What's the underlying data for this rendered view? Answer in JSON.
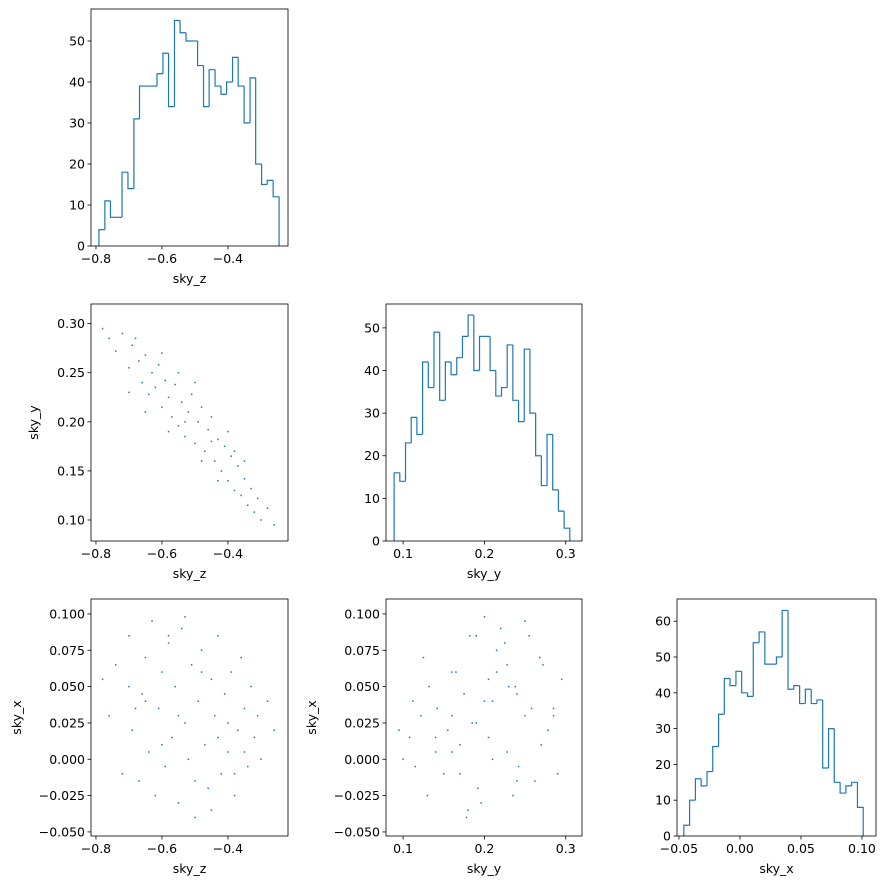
{
  "chart_data": [
    {
      "type": "histogram",
      "x_label": "sky_z",
      "color": "#1f77b4",
      "bins": [
        -0.791,
        -0.773,
        -0.756,
        -0.738,
        -0.721,
        -0.703,
        -0.685,
        -0.668,
        -0.65,
        -0.633,
        -0.615,
        -0.597,
        -0.58,
        -0.562,
        -0.545,
        -0.527,
        -0.509,
        -0.492,
        -0.474,
        -0.457,
        -0.439,
        -0.421,
        -0.404,
        -0.386,
        -0.369,
        -0.351,
        -0.333,
        -0.316,
        -0.298,
        -0.281,
        -0.263,
        -0.245
      ],
      "values": [
        4,
        11,
        7,
        7,
        18,
        14,
        31,
        39,
        39,
        39,
        42,
        47,
        34,
        55,
        52,
        50,
        50,
        44,
        34,
        43,
        39,
        37,
        40,
        46,
        39,
        30,
        41,
        20,
        15,
        16,
        12
      ],
      "xlim": [
        -0.815,
        -0.218
      ],
      "ylim": [
        0,
        57.8
      ],
      "xticks": [
        {
          "value": -0.8,
          "label": "−0.8"
        },
        {
          "value": -0.6,
          "label": "−0.6"
        },
        {
          "value": -0.4,
          "label": "−0.4"
        }
      ],
      "yticks": [
        0,
        10,
        20,
        30,
        40,
        50
      ]
    },
    {
      "type": "scatter",
      "x_label": "sky_z",
      "y_label": "sky_y",
      "color": "#1f77b4",
      "x": [
        -0.78,
        -0.76,
        -0.74,
        -0.72,
        -0.7,
        -0.69,
        -0.67,
        -0.66,
        -0.65,
        -0.64,
        -0.63,
        -0.62,
        -0.61,
        -0.6,
        -0.59,
        -0.58,
        -0.57,
        -0.56,
        -0.55,
        -0.54,
        -0.53,
        -0.52,
        -0.51,
        -0.5,
        -0.49,
        -0.48,
        -0.47,
        -0.46,
        -0.45,
        -0.44,
        -0.43,
        -0.42,
        -0.41,
        -0.4,
        -0.39,
        -0.38,
        -0.37,
        -0.36,
        -0.35,
        -0.34,
        -0.33,
        -0.32,
        -0.31,
        -0.3,
        -0.28,
        -0.26,
        -0.6,
        -0.55,
        -0.5,
        -0.45,
        -0.4,
        -0.35,
        -0.65,
        -0.7,
        -0.48,
        -0.58,
        -0.53,
        -0.43,
        -0.68,
        -0.38
      ],
      "values": [
        0.295,
        0.285,
        0.272,
        0.29,
        0.255,
        0.278,
        0.262,
        0.24,
        0.268,
        0.228,
        0.25,
        0.235,
        0.258,
        0.215,
        0.242,
        0.225,
        0.205,
        0.238,
        0.196,
        0.22,
        0.185,
        0.21,
        0.228,
        0.178,
        0.2,
        0.215,
        0.17,
        0.192,
        0.205,
        0.16,
        0.182,
        0.15,
        0.175,
        0.14,
        0.165,
        0.13,
        0.155,
        0.125,
        0.142,
        0.115,
        0.132,
        0.108,
        0.122,
        0.1,
        0.112,
        0.095,
        0.27,
        0.25,
        0.24,
        0.18,
        0.19,
        0.16,
        0.21,
        0.23,
        0.16,
        0.19,
        0.2,
        0.14,
        0.285,
        0.17
      ],
      "xlim": [
        -0.815,
        -0.218
      ],
      "ylim": [
        0.0786,
        0.32
      ],
      "xticks": [
        {
          "value": -0.8,
          "label": "−0.8"
        },
        {
          "value": -0.6,
          "label": "−0.6"
        },
        {
          "value": -0.4,
          "label": "−0.4"
        }
      ],
      "yticks": [
        {
          "value": 0.1,
          "label": "0.10"
        },
        0.15,
        {
          "value": 0.2,
          "label": "0.20"
        },
        0.25,
        {
          "value": 0.3,
          "label": "0.30"
        }
      ]
    },
    {
      "type": "histogram",
      "x_label": "sky_y",
      "color": "#1f77b4",
      "bins": [
        0.089,
        0.096,
        0.103,
        0.11,
        0.117,
        0.124,
        0.131,
        0.138,
        0.145,
        0.152,
        0.159,
        0.166,
        0.173,
        0.18,
        0.187,
        0.194,
        0.2,
        0.207,
        0.214,
        0.221,
        0.228,
        0.235,
        0.242,
        0.249,
        0.256,
        0.263,
        0.27,
        0.277,
        0.284,
        0.291,
        0.298,
        0.305
      ],
      "values": [
        16,
        14,
        23,
        29,
        25,
        42,
        36,
        49,
        33,
        42,
        39,
        43,
        48,
        53,
        40,
        48,
        48,
        40,
        34,
        36,
        46,
        33,
        28,
        45,
        30,
        20,
        13,
        25,
        12,
        7,
        3
      ],
      "xlim": [
        0.079,
        0.32
      ],
      "ylim": [
        0,
        55.6
      ],
      "xticks": [
        0.1,
        0.2,
        0.3
      ],
      "yticks": [
        0,
        10,
        20,
        30,
        40,
        50
      ]
    },
    {
      "type": "scatter",
      "x_label": "sky_z",
      "y_label": "sky_x",
      "color": "#1f77b4",
      "x": [
        -0.78,
        -0.76,
        -0.74,
        -0.72,
        -0.7,
        -0.69,
        -0.67,
        -0.66,
        -0.65,
        -0.64,
        -0.63,
        -0.62,
        -0.61,
        -0.6,
        -0.59,
        -0.58,
        -0.57,
        -0.56,
        -0.55,
        -0.54,
        -0.53,
        -0.52,
        -0.51,
        -0.5,
        -0.49,
        -0.48,
        -0.47,
        -0.46,
        -0.45,
        -0.44,
        -0.43,
        -0.42,
        -0.41,
        -0.4,
        -0.39,
        -0.38,
        -0.37,
        -0.36,
        -0.35,
        -0.34,
        -0.33,
        -0.32,
        -0.31,
        -0.3,
        -0.28,
        -0.26,
        -0.6,
        -0.55,
        -0.5,
        -0.45,
        -0.4,
        -0.35,
        -0.65,
        -0.7,
        -0.48,
        -0.58,
        -0.53,
        -0.43,
        -0.68,
        -0.38
      ],
      "values": [
        0.055,
        0.03,
        0.065,
        -0.01,
        0.085,
        0.02,
        -0.015,
        0.045,
        0.07,
        0.005,
        0.095,
        -0.025,
        0.035,
        0.06,
        -0.005,
        0.08,
        0.015,
        0.05,
        -0.03,
        0.09,
        0.025,
        0.0,
        0.065,
        -0.04,
        0.04,
        0.075,
        0.01,
        -0.02,
        0.055,
        0.03,
        0.085,
        -0.01,
        0.045,
        0.005,
        0.06,
        -0.025,
        0.02,
        0.07,
        0.035,
        -0.005,
        0.05,
        0.015,
        0.03,
        0.0,
        0.04,
        0.02,
        0.01,
        0.03,
        -0.015,
        -0.035,
        0.025,
        0.005,
        0.04,
        0.05,
        0.06,
        0.085,
        0.098,
        0.015,
        0.035,
        -0.01
      ],
      "xlim": [
        -0.815,
        -0.218
      ],
      "ylim": [
        -0.0528,
        0.1103
      ],
      "xticks": [
        {
          "value": -0.8,
          "label": "−0.8"
        },
        {
          "value": -0.6,
          "label": "−0.6"
        },
        {
          "value": -0.4,
          "label": "−0.4"
        }
      ],
      "yticks": [
        {
          "value": -0.05,
          "label": "−0.050"
        },
        {
          "value": -0.025,
          "label": "−0.025"
        },
        {
          "value": 0,
          "label": "0.000"
        },
        0.025,
        {
          "value": 0.05,
          "label": "0.050"
        },
        0.075,
        {
          "value": 0.1,
          "label": "0.100"
        }
      ]
    },
    {
      "type": "scatter",
      "x_label": "sky_y",
      "y_label": "sky_x",
      "color": "#1f77b4",
      "x": [
        0.295,
        0.285,
        0.272,
        0.29,
        0.255,
        0.278,
        0.262,
        0.24,
        0.268,
        0.228,
        0.25,
        0.235,
        0.258,
        0.215,
        0.242,
        0.225,
        0.205,
        0.238,
        0.196,
        0.22,
        0.185,
        0.21,
        0.228,
        0.178,
        0.2,
        0.215,
        0.17,
        0.192,
        0.205,
        0.16,
        0.182,
        0.15,
        0.175,
        0.14,
        0.165,
        0.13,
        0.155,
        0.125,
        0.142,
        0.115,
        0.132,
        0.108,
        0.122,
        0.1,
        0.112,
        0.095,
        0.27,
        0.25,
        0.24,
        0.18,
        0.19,
        0.16,
        0.21,
        0.23,
        0.16,
        0.19,
        0.2,
        0.14,
        0.285,
        0.17
      ],
      "values": [
        0.055,
        0.03,
        0.065,
        -0.01,
        0.085,
        0.02,
        -0.015,
        0.045,
        0.07,
        0.005,
        0.095,
        -0.025,
        0.035,
        0.06,
        -0.005,
        0.08,
        0.015,
        0.05,
        -0.03,
        0.09,
        0.025,
        0.0,
        0.065,
        -0.04,
        0.04,
        0.075,
        0.01,
        -0.02,
        0.055,
        0.03,
        0.085,
        -0.01,
        0.045,
        0.005,
        0.06,
        -0.025,
        0.02,
        0.07,
        0.035,
        -0.005,
        0.05,
        0.015,
        0.03,
        0.0,
        0.04,
        0.02,
        0.01,
        0.03,
        -0.015,
        -0.035,
        0.025,
        0.005,
        0.04,
        0.05,
        0.06,
        0.085,
        0.098,
        0.015,
        0.035,
        -0.01
      ],
      "xlim": [
        0.079,
        0.32
      ],
      "ylim": [
        -0.0528,
        0.1103
      ],
      "xticks": [
        0.1,
        0.2,
        0.3
      ],
      "yticks": [
        {
          "value": -0.05,
          "label": "−0.050"
        },
        {
          "value": -0.025,
          "label": "−0.025"
        },
        {
          "value": 0,
          "label": "0.000"
        },
        0.025,
        {
          "value": 0.05,
          "label": "0.050"
        },
        0.075,
        {
          "value": 0.1,
          "label": "0.100"
        }
      ]
    },
    {
      "type": "histogram",
      "x_label": "sky_x",
      "color": "#1f77b4",
      "bins": [
        -0.046,
        -0.0413,
        -0.0365,
        -0.0318,
        -0.027,
        -0.0223,
        -0.0175,
        -0.0128,
        -0.0081,
        -0.0033,
        0.0014,
        0.0062,
        0.0109,
        0.0157,
        0.0204,
        0.0251,
        0.0299,
        0.0346,
        0.0394,
        0.0441,
        0.0489,
        0.0536,
        0.0584,
        0.0631,
        0.0678,
        0.0726,
        0.0773,
        0.0821,
        0.0868,
        0.0916,
        0.0963,
        0.101
      ],
      "values": [
        3,
        10,
        16,
        14,
        18,
        25,
        34,
        44,
        42,
        46,
        40,
        39,
        54,
        57,
        48,
        48,
        50,
        63,
        41,
        42,
        37,
        41,
        37,
        38,
        19,
        30,
        15,
        12,
        14,
        15,
        8
      ],
      "xlim": [
        -0.0516,
        0.1115
      ],
      "ylim": [
        0,
        66.2
      ],
      "xticks": [
        {
          "value": -0.05,
          "label": "−0.05"
        },
        {
          "value": 0,
          "label": "0.00"
        },
        0.05,
        {
          "value": 0.1,
          "label": "0.10"
        }
      ],
      "yticks": [
        0,
        10,
        20,
        30,
        40,
        50,
        60
      ]
    }
  ]
}
